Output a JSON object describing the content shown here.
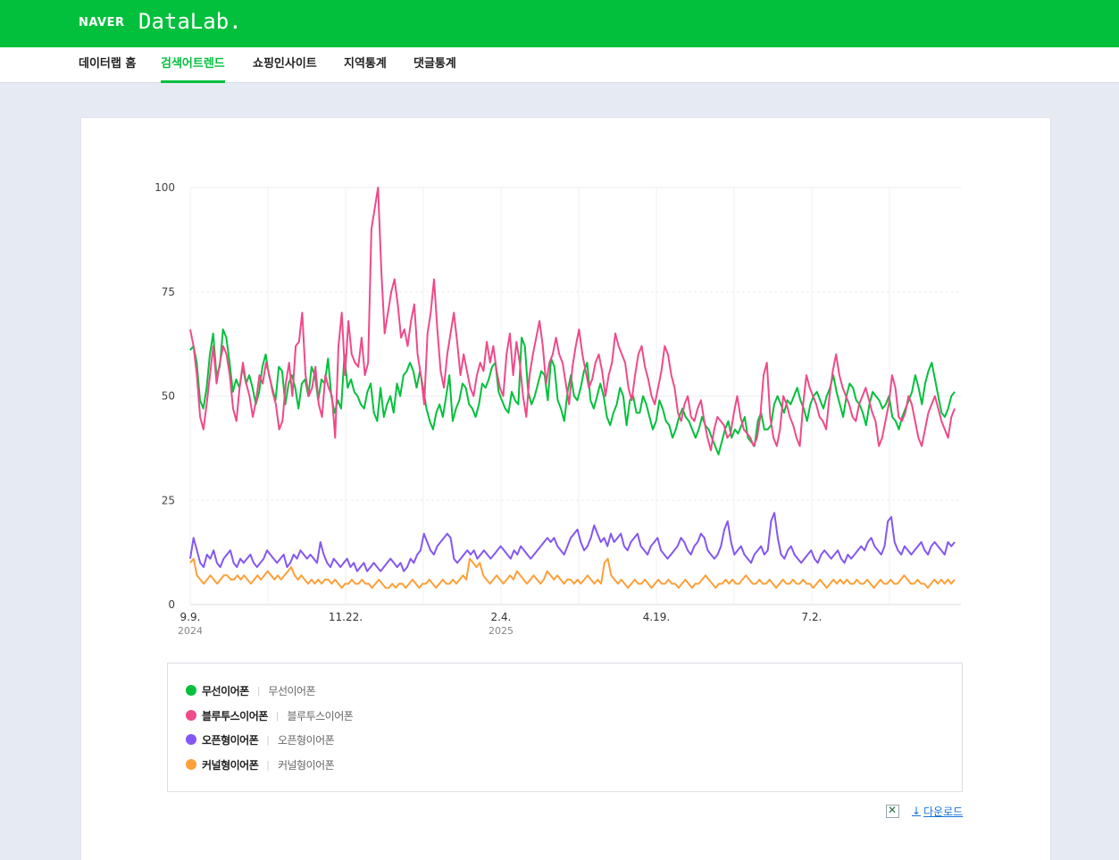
{
  "header": {
    "brand": "NAVER",
    "product": "DataLab."
  },
  "nav": [
    {
      "label": "데이터랩 홈",
      "active": false
    },
    {
      "label": "검색어트렌드",
      "active": true
    },
    {
      "label": "쇼핑인사이트",
      "active": false
    },
    {
      "label": "지역통계",
      "active": false
    },
    {
      "label": "댓글통계",
      "active": false
    }
  ],
  "chart_data": {
    "type": "line",
    "ylim": [
      0,
      100
    ],
    "yticks": [
      "0",
      "25",
      "50",
      "75",
      "100"
    ],
    "xtick_labels": [
      {
        "label": "9.9.",
        "year": "2024"
      },
      {
        "label": "11.22.",
        "year": ""
      },
      {
        "label": "2.4.",
        "year": "2025"
      },
      {
        "label": "4.19.",
        "year": ""
      },
      {
        "label": "7.2.",
        "year": ""
      }
    ],
    "grid": true,
    "series": [
      {
        "name": "무선이어폰",
        "color": "#03c03c",
        "values": [
          61,
          62,
          58,
          49,
          47,
          52,
          60,
          65,
          55,
          57,
          66,
          64,
          58,
          51,
          54,
          52,
          57,
          53,
          55,
          52,
          48,
          51,
          57,
          60,
          55,
          52,
          49,
          57,
          56,
          48,
          53,
          55,
          52,
          47,
          53,
          54,
          50,
          57,
          55,
          49,
          54,
          53,
          59,
          50,
          46,
          49,
          47,
          60,
          52,
          54,
          51,
          50,
          48,
          47,
          51,
          53,
          46,
          44,
          52,
          45,
          48,
          50,
          46,
          53,
          50,
          55,
          56,
          58,
          56,
          52,
          56,
          52,
          47,
          44,
          42,
          46,
          48,
          45,
          50,
          55,
          44,
          47,
          49,
          53,
          52,
          48,
          47,
          45,
          48,
          53,
          52,
          54,
          57,
          58,
          51,
          49,
          47,
          46,
          51,
          49,
          48,
          64,
          62,
          51,
          48,
          50,
          53,
          56,
          55,
          49,
          59,
          57,
          49,
          47,
          44,
          51,
          55,
          50,
          49,
          52,
          56,
          58,
          49,
          47,
          50,
          53,
          50,
          45,
          43,
          46,
          48,
          52,
          50,
          43,
          49,
          50,
          46,
          46,
          50,
          48,
          45,
          42,
          44,
          49,
          47,
          44,
          43,
          40,
          42,
          45,
          47,
          45,
          44,
          42,
          40,
          42,
          45,
          43,
          42,
          40,
          38,
          36,
          39,
          42,
          44,
          40,
          42,
          41,
          43,
          45,
          40,
          39,
          38,
          44,
          46,
          42,
          42,
          43,
          48,
          50,
          48,
          46,
          49,
          48,
          50,
          52,
          49,
          47,
          44,
          48,
          50,
          51,
          49,
          47,
          50,
          52,
          55,
          51,
          48,
          45,
          50,
          53,
          52,
          49,
          48,
          46,
          43,
          48,
          51,
          50,
          49,
          47,
          48,
          50,
          45,
          44,
          42,
          45,
          47,
          49,
          51,
          55,
          52,
          48,
          53,
          56,
          58,
          54,
          50,
          46,
          45,
          47,
          50,
          51
        ]
      },
      {
        "name": "블루투스이어폰",
        "color": "#ef4a89",
        "values": [
          66,
          62,
          55,
          45,
          42,
          48,
          55,
          62,
          53,
          58,
          62,
          60,
          55,
          47,
          44,
          52,
          58,
          53,
          50,
          45,
          49,
          55,
          53,
          58,
          55,
          51,
          48,
          42,
          44,
          53,
          58,
          50,
          62,
          63,
          70,
          55,
          50,
          52,
          57,
          48,
          45,
          55,
          52,
          50,
          40,
          62,
          70,
          55,
          68,
          60,
          58,
          57,
          64,
          55,
          58,
          90,
          95,
          100,
          80,
          65,
          70,
          75,
          78,
          72,
          64,
          66,
          62,
          68,
          72,
          60,
          55,
          48,
          65,
          70,
          78,
          66,
          56,
          52,
          60,
          65,
          70,
          63,
          55,
          60,
          56,
          52,
          50,
          55,
          58,
          56,
          63,
          58,
          62,
          56,
          52,
          50,
          60,
          65,
          55,
          63,
          58,
          50,
          45,
          55,
          60,
          64,
          68,
          62,
          53,
          58,
          60,
          64,
          60,
          58,
          53,
          48,
          57,
          62,
          66,
          60,
          56,
          52,
          54,
          58,
          60,
          56,
          50,
          55,
          58,
          65,
          62,
          60,
          58,
          52,
          49,
          55,
          60,
          62,
          57,
          54,
          50,
          48,
          52,
          56,
          62,
          60,
          55,
          52,
          46,
          44,
          48,
          50,
          45,
          44,
          47,
          49,
          44,
          40,
          37,
          42,
          45,
          44,
          43,
          40,
          41,
          46,
          50,
          45,
          42,
          41,
          40,
          38,
          40,
          45,
          55,
          58,
          45,
          40,
          38,
          42,
          50,
          48,
          45,
          43,
          40,
          38,
          48,
          55,
          52,
          50,
          48,
          45,
          44,
          42,
          50,
          56,
          60,
          55,
          52,
          50,
          48,
          45,
          44,
          48,
          50,
          52,
          49,
          46,
          44,
          38,
          40,
          44,
          48,
          55,
          52,
          45,
          44,
          46,
          50,
          48,
          44,
          40,
          38,
          42,
          46,
          48,
          50,
          47,
          44,
          42,
          40,
          45,
          47
        ]
      },
      {
        "name": "오픈형이어폰",
        "color": "#8457f0",
        "values": [
          11,
          16,
          13,
          10,
          9,
          12,
          11,
          13,
          10,
          9,
          11,
          12,
          13,
          10,
          9,
          11,
          10,
          11,
          12,
          10,
          9,
          10,
          11,
          13,
          12,
          11,
          10,
          11,
          12,
          9,
          10,
          12,
          11,
          13,
          12,
          11,
          12,
          11,
          10,
          15,
          12,
          10,
          9,
          11,
          10,
          9,
          10,
          11,
          9,
          10,
          8,
          9,
          10,
          8,
          9,
          10,
          9,
          8,
          9,
          10,
          11,
          10,
          9,
          10,
          8,
          9,
          11,
          10,
          12,
          13,
          17,
          15,
          13,
          12,
          14,
          15,
          16,
          17,
          16,
          11,
          10,
          11,
          12,
          13,
          12,
          13,
          11,
          12,
          13,
          12,
          11,
          12,
          13,
          14,
          13,
          12,
          11,
          13,
          12,
          14,
          13,
          12,
          11,
          12,
          13,
          14,
          15,
          16,
          15,
          16,
          14,
          13,
          12,
          14,
          16,
          17,
          18,
          15,
          13,
          14,
          16,
          19,
          17,
          15,
          16,
          14,
          17,
          15,
          16,
          17,
          14,
          13,
          15,
          16,
          17,
          14,
          13,
          12,
          14,
          15,
          16,
          13,
          12,
          11,
          12,
          13,
          14,
          16,
          15,
          13,
          12,
          14,
          15,
          17,
          16,
          13,
          12,
          11,
          12,
          14,
          18,
          20,
          15,
          12,
          13,
          14,
          12,
          11,
          10,
          12,
          13,
          14,
          12,
          13,
          20,
          22,
          16,
          12,
          11,
          13,
          14,
          12,
          11,
          10,
          11,
          12,
          13,
          11,
          10,
          12,
          13,
          12,
          11,
          12,
          13,
          11,
          10,
          12,
          11,
          12,
          13,
          14,
          13,
          15,
          16,
          14,
          13,
          12,
          14,
          20,
          21,
          15,
          13,
          12,
          14,
          13,
          12,
          13,
          14,
          15,
          13,
          12,
          14,
          15,
          14,
          13,
          12,
          15,
          14,
          15
        ]
      },
      {
        "name": "커널형이어폰",
        "color": "#fca039",
        "values": [
          10,
          11,
          7,
          6,
          5,
          6,
          7,
          6,
          5,
          6,
          7,
          7,
          6,
          6,
          7,
          6,
          7,
          6,
          5,
          6,
          7,
          6,
          7,
          8,
          7,
          6,
          7,
          6,
          7,
          8,
          9,
          7,
          6,
          7,
          6,
          5,
          6,
          5,
          6,
          5,
          6,
          6,
          5,
          6,
          5,
          4,
          5,
          5,
          6,
          5,
          5,
          6,
          5,
          5,
          4,
          5,
          6,
          5,
          4,
          4,
          5,
          4,
          5,
          5,
          4,
          5,
          6,
          5,
          4,
          5,
          5,
          6,
          5,
          4,
          5,
          6,
          5,
          5,
          6,
          5,
          6,
          7,
          6,
          11,
          10,
          9,
          10,
          7,
          6,
          5,
          6,
          7,
          6,
          5,
          6,
          7,
          6,
          8,
          7,
          6,
          5,
          6,
          7,
          6,
          5,
          6,
          8,
          7,
          6,
          7,
          6,
          5,
          6,
          6,
          5,
          6,
          5,
          6,
          7,
          6,
          5,
          6,
          5,
          10,
          11,
          7,
          6,
          5,
          6,
          5,
          4,
          5,
          6,
          5,
          5,
          6,
          5,
          4,
          5,
          6,
          5,
          5,
          6,
          5,
          5,
          4,
          5,
          6,
          5,
          4,
          5,
          5,
          6,
          7,
          6,
          5,
          4,
          5,
          5,
          6,
          5,
          6,
          5,
          5,
          6,
          7,
          6,
          5,
          5,
          6,
          5,
          5,
          6,
          5,
          4,
          5,
          6,
          5,
          5,
          6,
          5,
          5,
          6,
          5,
          5,
          4,
          5,
          6,
          5,
          4,
          5,
          6,
          5,
          6,
          5,
          6,
          5,
          5,
          6,
          5,
          5,
          6,
          5,
          4,
          5,
          6,
          5,
          5,
          6,
          5,
          5,
          6,
          7,
          6,
          5,
          5,
          6,
          5,
          5,
          4,
          5,
          6,
          5,
          6,
          5,
          6,
          5,
          6
        ]
      }
    ]
  },
  "legend": [
    {
      "name": "무선이어폰",
      "keyword": "무선이어폰",
      "color": "#03c03c"
    },
    {
      "name": "블루투스이어폰",
      "keyword": "블루투스이어폰",
      "color": "#ef4a89"
    },
    {
      "name": "오픈형이어폰",
      "keyword": "오픈형이어폰",
      "color": "#8457f0"
    },
    {
      "name": "커널형이어폰",
      "keyword": "커널형이어폰",
      "color": "#fca039"
    }
  ],
  "download": {
    "label": "다운로드",
    "icon": "excel-icon"
  }
}
